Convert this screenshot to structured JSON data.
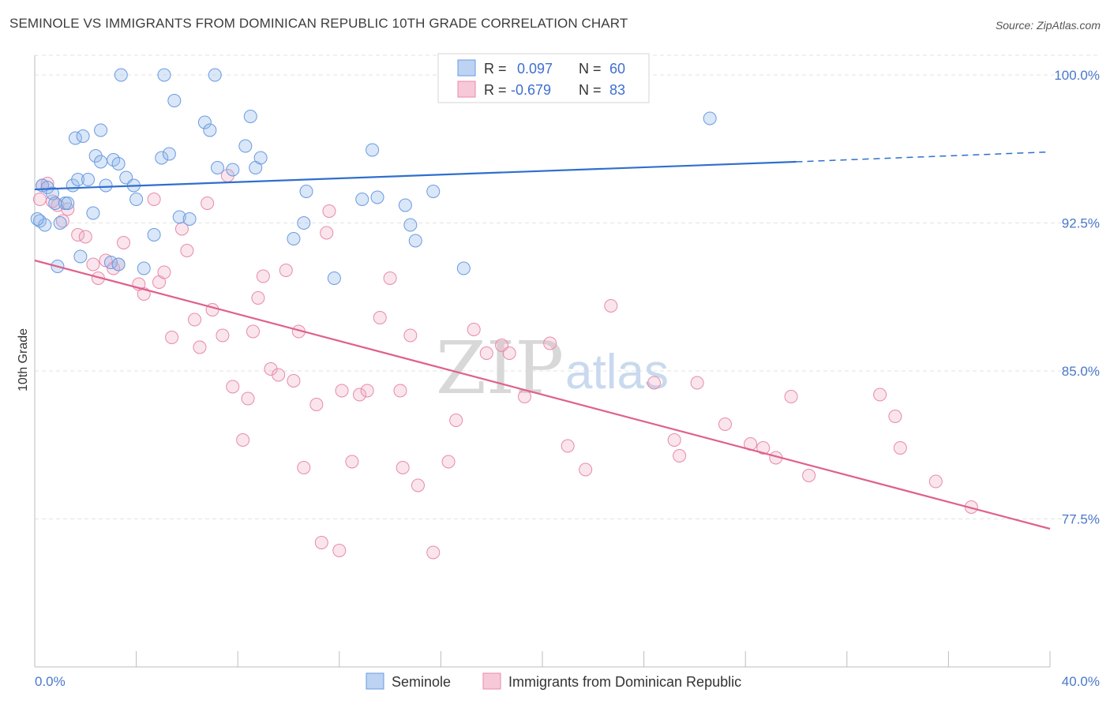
{
  "title": "SEMINOLE VS IMMIGRANTS FROM DOMINICAN REPUBLIC 10TH GRADE CORRELATION CHART",
  "source": "Source: ZipAtlas.com",
  "watermark": {
    "zip": "ZIP",
    "atlas": "atlas"
  },
  "colors": {
    "seminole": "#6a9be0",
    "seminole_fill": "rgba(150,185,235,0.35)",
    "dominican": "#e88aaa",
    "dominican_fill": "rgba(240,170,195,0.30)",
    "seminole_line": "#2f6fce",
    "dominican_line": "#e0608e",
    "grid": "#e3e3e3",
    "tick_label": "#4a78c9"
  },
  "legend": {
    "r_label": "R =",
    "n_label": "N =",
    "entries": [
      {
        "r": "0.097",
        "n": "60"
      },
      {
        "r": "-0.679",
        "n": "83"
      }
    ]
  },
  "chart_data": {
    "type": "scatter",
    "xlabel": "",
    "ylabel": "10th Grade",
    "xlim": [
      0,
      40
    ],
    "ylim": [
      70.0,
      101.0
    ],
    "x_tick_labels": [
      "0.0%",
      "40.0%"
    ],
    "y_ticks": [
      77.5,
      85.0,
      92.5,
      100.0
    ],
    "y_tick_labels": [
      "77.5%",
      "85.0%",
      "92.5%",
      "100.0%"
    ],
    "grid": "horizontal dashed",
    "legend_position": "top-center",
    "series": [
      {
        "name": "Seminole",
        "r": 0.097,
        "n": 60,
        "trend": {
          "x0": 0,
          "y0": 94.2,
          "x1": 30,
          "y1": 95.6,
          "dashed_to_x": 40,
          "dashed_to_y": 96.1
        },
        "points": [
          [
            0.2,
            92.6
          ],
          [
            0.3,
            94.4
          ],
          [
            0.4,
            92.4
          ],
          [
            0.5,
            94.3
          ],
          [
            0.7,
            94.0
          ],
          [
            0.8,
            93.5
          ],
          [
            0.9,
            90.3
          ],
          [
            1.0,
            92.5
          ],
          [
            1.2,
            93.5
          ],
          [
            1.3,
            93.5
          ],
          [
            1.5,
            94.4
          ],
          [
            1.6,
            96.8
          ],
          [
            1.7,
            94.7
          ],
          [
            1.8,
            90.8
          ],
          [
            1.9,
            96.9
          ],
          [
            2.1,
            94.7
          ],
          [
            2.3,
            93.0
          ],
          [
            2.4,
            95.9
          ],
          [
            2.6,
            97.2
          ],
          [
            2.6,
            95.6
          ],
          [
            2.8,
            94.4
          ],
          [
            3.0,
            90.5
          ],
          [
            3.1,
            95.7
          ],
          [
            3.3,
            90.4
          ],
          [
            3.3,
            95.5
          ],
          [
            3.4,
            100.0
          ],
          [
            3.6,
            94.8
          ],
          [
            3.9,
            94.4
          ],
          [
            4.0,
            93.7
          ],
          [
            4.3,
            90.2
          ],
          [
            4.7,
            91.9
          ],
          [
            5.0,
            95.8
          ],
          [
            5.1,
            100.0
          ],
          [
            5.3,
            96.0
          ],
          [
            5.5,
            98.7
          ],
          [
            5.7,
            92.8
          ],
          [
            6.1,
            92.7
          ],
          [
            6.7,
            97.6
          ],
          [
            6.9,
            97.2
          ],
          [
            7.1,
            100.0
          ],
          [
            7.2,
            95.3
          ],
          [
            7.8,
            95.2
          ],
          [
            8.3,
            96.4
          ],
          [
            8.5,
            97.9
          ],
          [
            8.7,
            95.3
          ],
          [
            8.9,
            95.8
          ],
          [
            10.2,
            91.7
          ],
          [
            10.6,
            92.5
          ],
          [
            10.7,
            94.1
          ],
          [
            11.8,
            89.7
          ],
          [
            12.9,
            93.7
          ],
          [
            13.3,
            96.2
          ],
          [
            13.5,
            93.8
          ],
          [
            14.6,
            93.4
          ],
          [
            14.8,
            92.4
          ],
          [
            15.0,
            91.6
          ],
          [
            15.7,
            94.1
          ],
          [
            16.9,
            90.2
          ],
          [
            26.6,
            97.8
          ],
          [
            0.1,
            92.7
          ]
        ]
      },
      {
        "name": "Immigrants from Dominican Republic",
        "r": -0.679,
        "n": 83,
        "trend": {
          "x0": 0,
          "y0": 90.6,
          "x1": 40,
          "y1": 77.0
        },
        "points": [
          [
            0.2,
            93.7
          ],
          [
            0.3,
            94.4
          ],
          [
            0.5,
            94.5
          ],
          [
            0.7,
            93.6
          ],
          [
            0.9,
            93.4
          ],
          [
            1.1,
            92.6
          ],
          [
            1.3,
            93.2
          ],
          [
            1.7,
            91.9
          ],
          [
            2.0,
            91.8
          ],
          [
            2.3,
            90.4
          ],
          [
            2.5,
            89.7
          ],
          [
            2.8,
            90.6
          ],
          [
            3.1,
            90.2
          ],
          [
            3.3,
            90.4
          ],
          [
            3.5,
            91.5
          ],
          [
            4.1,
            89.4
          ],
          [
            4.3,
            88.9
          ],
          [
            4.7,
            93.7
          ],
          [
            4.9,
            89.5
          ],
          [
            5.1,
            90.0
          ],
          [
            5.4,
            86.7
          ],
          [
            5.8,
            92.2
          ],
          [
            6.0,
            91.1
          ],
          [
            6.3,
            87.6
          ],
          [
            6.5,
            86.2
          ],
          [
            6.8,
            93.5
          ],
          [
            7.0,
            88.1
          ],
          [
            7.4,
            86.8
          ],
          [
            7.6,
            94.9
          ],
          [
            7.8,
            84.2
          ],
          [
            8.2,
            81.5
          ],
          [
            8.4,
            83.6
          ],
          [
            8.6,
            87.0
          ],
          [
            8.8,
            88.7
          ],
          [
            9.0,
            89.8
          ],
          [
            9.3,
            85.1
          ],
          [
            9.6,
            84.8
          ],
          [
            9.9,
            90.1
          ],
          [
            10.2,
            84.5
          ],
          [
            10.4,
            87.0
          ],
          [
            10.6,
            80.1
          ],
          [
            11.1,
            83.3
          ],
          [
            11.3,
            76.3
          ],
          [
            11.5,
            92.0
          ],
          [
            11.6,
            93.1
          ],
          [
            12.0,
            75.9
          ],
          [
            12.1,
            84.0
          ],
          [
            12.5,
            80.4
          ],
          [
            12.8,
            83.8
          ],
          [
            13.1,
            84.0
          ],
          [
            13.6,
            87.7
          ],
          [
            14.0,
            89.7
          ],
          [
            14.4,
            84.0
          ],
          [
            14.5,
            80.1
          ],
          [
            14.8,
            86.8
          ],
          [
            15.1,
            79.2
          ],
          [
            15.7,
            75.8
          ],
          [
            16.3,
            80.4
          ],
          [
            16.6,
            82.5
          ],
          [
            17.3,
            87.1
          ],
          [
            17.8,
            85.9
          ],
          [
            18.4,
            86.3
          ],
          [
            18.7,
            85.9
          ],
          [
            19.3,
            83.7
          ],
          [
            20.3,
            86.4
          ],
          [
            21.0,
            81.2
          ],
          [
            21.7,
            80.0
          ],
          [
            22.7,
            88.3
          ],
          [
            24.4,
            84.4
          ],
          [
            25.2,
            81.5
          ],
          [
            25.4,
            80.7
          ],
          [
            26.1,
            84.4
          ],
          [
            27.2,
            82.3
          ],
          [
            28.2,
            81.3
          ],
          [
            28.7,
            81.1
          ],
          [
            29.2,
            80.6
          ],
          [
            29.8,
            83.7
          ],
          [
            30.5,
            79.7
          ],
          [
            33.3,
            83.8
          ],
          [
            33.9,
            82.7
          ],
          [
            34.1,
            81.1
          ],
          [
            35.5,
            79.4
          ],
          [
            36.9,
            78.1
          ]
        ]
      }
    ]
  }
}
